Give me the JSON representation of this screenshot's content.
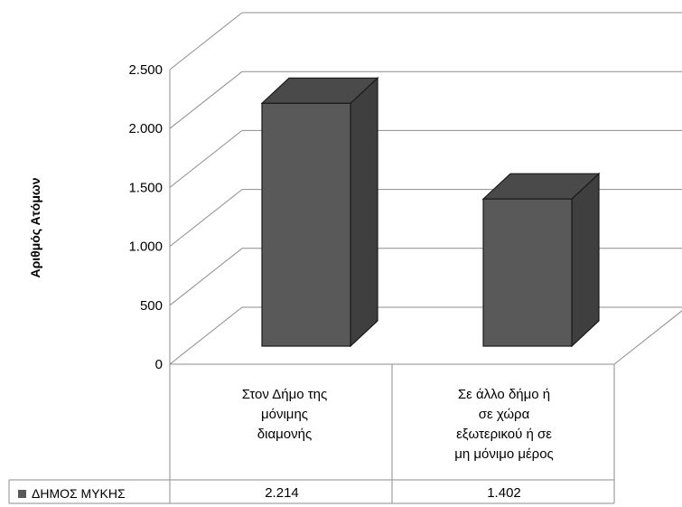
{
  "chart_data": {
    "type": "bar",
    "title": "",
    "xlabel": "",
    "ylabel": "Αριθμός Ατόμων",
    "categories": [
      [
        "Στον Δήμο της",
        "μόνιμης",
        "διαμονής"
      ],
      [
        "Σε άλλο δήμο ή",
        "σε χώρα",
        "εξωτερικού ή σε",
        "μη μόνιμο μέρος"
      ]
    ],
    "series": [
      {
        "name": "ΔΗΜΟΣ ΜΥΚΗΣ",
        "values": [
          2214,
          1402
        ],
        "labels": [
          "2.214",
          "1.402"
        ],
        "color": "#595959"
      }
    ],
    "ylim": [
      0,
      2500
    ],
    "yticks": [
      {
        "value": 0,
        "label": "0"
      },
      {
        "value": 500,
        "label": "500"
      },
      {
        "value": 1000,
        "label": "1.000"
      },
      {
        "value": 1500,
        "label": "1.500"
      },
      {
        "value": 2000,
        "label": "2.000"
      },
      {
        "value": 2500,
        "label": "2.500"
      }
    ],
    "grid": true,
    "projection": "3d",
    "legend": "bottom-left data table"
  }
}
